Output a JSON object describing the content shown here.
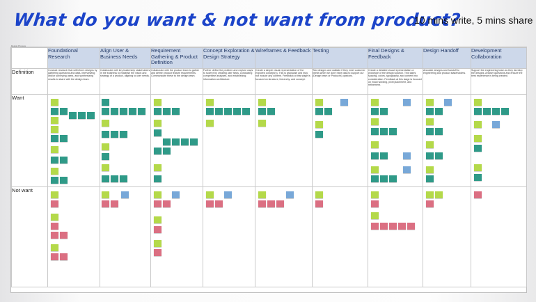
{
  "title": "What do you want & not want from product?",
  "subtitle": "10 mins write, 5 mins share",
  "board_label": "Design Process",
  "colors": {
    "title": "#1c44c9",
    "header_bg": "#cdd8ea",
    "sticky_green": "#2f9a88",
    "sticky_lime": "#b4d94a",
    "sticky_pink": "#db6f82",
    "sticky_blue": "#78a8d8"
  },
  "rows": {
    "definition": "Definition",
    "want": "Want",
    "not_want": "Not want"
  },
  "columns": [
    {
      "title": "Foundational Research",
      "definition": "Conduct research that will inform designs by gathering questions and data, interviewing and/or surveying users, and synthesizing results to share with the design team."
    },
    {
      "title": "Align User & Business Needs",
      "definition": "Collaborate with key leadership stakeholders in the business to establish the vision and strategy of a product, aligning to user needs."
    },
    {
      "title": "Requirement Gathering & Product Definition",
      "definition": "Collaborate with the product team to gather and define product feature requirements. Communicate these to the design team."
    },
    {
      "title": "Concept Exploration & Design Strategy",
      "definition": "Further define the problem and explore ways to solve it by creating user flows, conducting competitive analyses, and establishing information architecture."
    },
    {
      "title": "Wireframes & Feedback",
      "definition": "Create a simple visual representation of the explored concept(s). This is grayscale and may not include any content. Feedback at this stage is focused on structure, hierarchy, and concept."
    },
    {
      "title": "Testing",
      "definition": "Test designs and validate if they meet customer needs when we don't have data to support our (Design team or Product's) opinions."
    },
    {
      "title": "Final Designs & Feedback",
      "definition": "Create a detailed visual representation or prototype of the design solution. This takes spacing, colors, typography, and content into consideration. Feedback at this stage is focused on exact wording, pixel placement, and refinement."
    },
    {
      "title": "Design Handoff",
      "definition": "Annotate designs and handoff to engineering and product stakeholders."
    },
    {
      "title": "Development Collaboration",
      "definition": "Support the engineering team as they develop the designs. Answer questions and ensure the best experience is being created."
    }
  ]
}
